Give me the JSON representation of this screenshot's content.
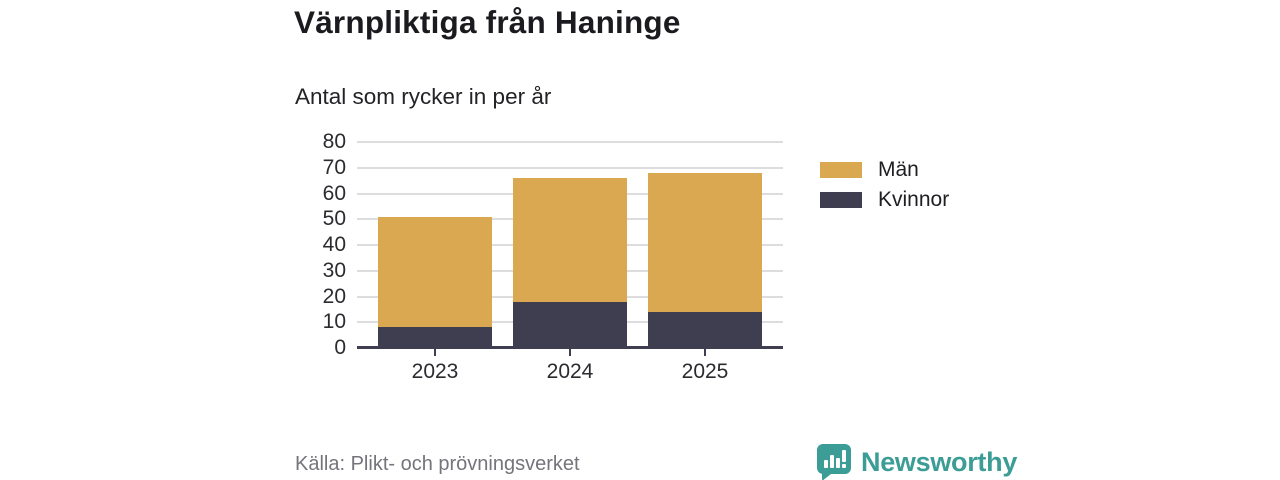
{
  "header": {
    "title": "Värnpliktiga från Haninge",
    "subtitle": "Antal som rycker in per år"
  },
  "chart_data": {
    "type": "bar",
    "stacked": true,
    "title": "Värnpliktiga från Haninge",
    "subtitle": "Antal som rycker in per år",
    "categories": [
      "2023",
      "2024",
      "2025"
    ],
    "series": [
      {
        "name": "Kvinnor",
        "color": "#3f3e50",
        "values": [
          8,
          18,
          14
        ]
      },
      {
        "name": "Män",
        "color": "#d9a851",
        "values": [
          43,
          48,
          54
        ]
      }
    ],
    "totals": [
      51,
      66,
      68
    ],
    "ylim": [
      0,
      80
    ],
    "yticks": [
      0,
      10,
      20,
      30,
      40,
      50,
      60,
      70,
      80
    ],
    "grid": "horizontal",
    "gridline_color": "#dddde0",
    "axis_color": "#3f3e50",
    "legend_position": "right"
  },
  "legend": {
    "items": [
      {
        "label": "Män",
        "color": "#d9a851"
      },
      {
        "label": "Kvinnor",
        "color": "#3f3e50"
      }
    ]
  },
  "footer": {
    "source": "Källa: Plikt- och prövningsverket",
    "brand": "Newsworthy",
    "brand_color": "#3b9d95"
  }
}
